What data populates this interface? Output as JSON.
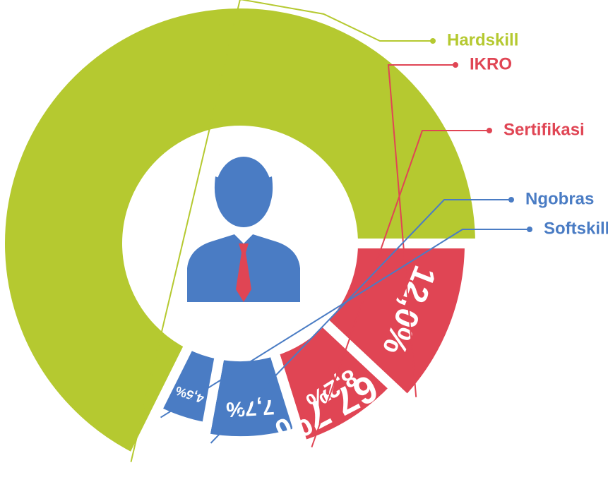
{
  "chart_data": {
    "type": "pie",
    "categories": [
      "Hardskill",
      "IKRO",
      "Sertifikasi",
      "Ngobras",
      "Softskill"
    ],
    "values": [
      67.7,
      12.0,
      8.2,
      7.7,
      4.5
    ],
    "value_labels": [
      "67,7%",
      "12,0%",
      "8,2%",
      "7,7%",
      "4,5%"
    ],
    "colors": [
      "#b5c930",
      "#e04554",
      "#e04554",
      "#4a7cc4",
      "#4a7cc4"
    ],
    "legend": "right"
  }
}
